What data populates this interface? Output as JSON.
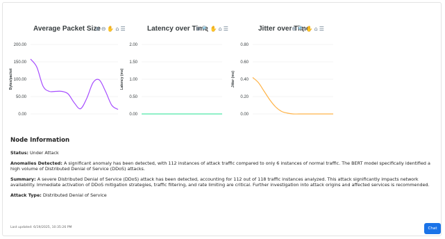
{
  "charts": [
    {
      "title": "Average Packet Size",
      "ylabel": "Bytes/packet",
      "yticks": [
        "200.00",
        "150.00",
        "100.00",
        "50.00",
        "0.00"
      ],
      "color": "#a64dff",
      "toolbar": {
        "zoom_in": "⊕",
        "zoom_out": "⊖",
        "zoom": "🔍",
        "pan": "✋",
        "home": "⌂",
        "menu": "☰"
      }
    },
    {
      "title": "Latency over Time",
      "ylabel": "Latency (ms)",
      "yticks": [
        "2.00",
        "1.50",
        "1.00",
        "0.50",
        "0.00"
      ],
      "color": "#4de8a8",
      "toolbar": {
        "zoom_in": "⊕",
        "zoom_out": "⊖",
        "zoom": "🔍",
        "pan": "✋",
        "home": "⌂",
        "menu": "☰"
      }
    },
    {
      "title": "Jitter over Time",
      "ylabel": "Jitter (ms)",
      "yticks": [
        "0.80",
        "0.60",
        "0.40",
        "0.20",
        "0.00"
      ],
      "color": "#ffb347",
      "toolbar": {
        "zoom_in": "⊕",
        "zoom_out": "⊖",
        "zoom": "🔍",
        "pan": "✋",
        "home": "⌂",
        "menu": "☰"
      }
    }
  ],
  "chart_data": [
    {
      "type": "line",
      "title": "Average Packet Size",
      "ylabel": "Bytes/packet",
      "ylim": [
        0,
        200
      ],
      "series": [
        {
          "values": [
            158,
            135,
            80,
            65,
            65,
            65,
            58,
            32,
            15,
            45,
            90,
            98,
            65,
            25,
            13
          ]
        }
      ]
    },
    {
      "type": "line",
      "title": "Latency over Time",
      "ylabel": "Latency (ms)",
      "ylim": [
        0,
        2
      ],
      "series": [
        {
          "values": [
            0,
            0,
            0,
            0,
            0,
            0,
            0,
            0,
            0,
            0,
            0,
            0,
            0,
            0,
            0
          ]
        }
      ]
    },
    {
      "type": "line",
      "title": "Jitter over Time",
      "ylabel": "Jitter (ms)",
      "ylim": [
        0,
        0.8
      ],
      "series": [
        {
          "values": [
            0.42,
            0.36,
            0.26,
            0.16,
            0.08,
            0.03,
            0.01,
            0,
            0,
            0,
            0,
            0,
            0,
            0,
            0
          ]
        }
      ]
    }
  ],
  "info": {
    "heading": "Node Information",
    "status_label": "Status:",
    "status_value": " Under Attack",
    "anomalies_label": "Anomalies Detected:",
    "anomalies_value": " A significant anomaly has been detected, with 112 instances of attack traffic compared to only 6 instances of normal traffic. The BERT model specifically identified a high volume of Distributed Denial of Service (DDoS) attacks.",
    "summary_label": "Summary:",
    "summary_value": " A severe Distributed Denial of Service (DDoS) attack has been detected, accounting for 112 out of 118 traffic instances analyzed. This attack significantly impacts network availability. Immediate activation of DDoS mitigation strategies, traffic filtering, and rate limiting are critical. Further investigation into attack origins and affected services is recommended.",
    "attack_type_label": "Attack Type:",
    "attack_type_value": " Distributed Denial of Service"
  },
  "footer": {
    "last_updated": "Last updated: 6/19/2025, 10:35:26 PM",
    "chat_label": "Chat"
  }
}
